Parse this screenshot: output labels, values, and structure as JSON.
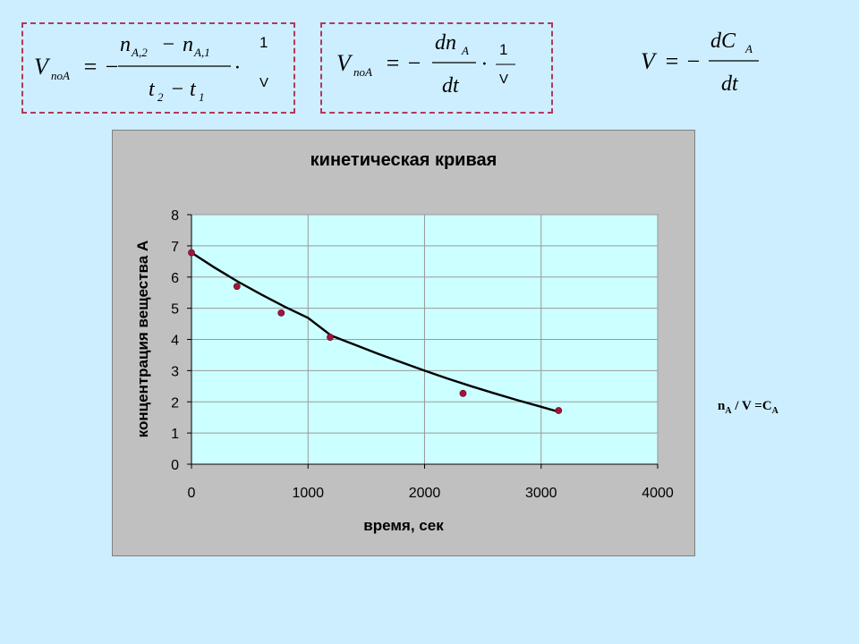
{
  "formulas": {
    "f1": {
      "lhs": "V",
      "lhs_sub": "поA",
      "eq": "= −",
      "num_a": "n",
      "num_a_sub": "A,2",
      "minus": "−",
      "num_b": "n",
      "num_b_sub": "A,1",
      "den_a": "t",
      "den_a_sub": "2",
      "den_b": "t",
      "den_b_sub": "1",
      "dot": "·",
      "one": "1",
      "vol": "V"
    },
    "f2": {
      "lhs": "V",
      "lhs_sub": "поA",
      "eq": "= −",
      "num": "dn",
      "num_sub": "A",
      "den": "dt",
      "dot": "·",
      "one": "1",
      "vol": "V"
    },
    "f3": {
      "lhs": "V",
      "eq": "= −",
      "num": "dC",
      "num_sub": "A",
      "den": "dt"
    }
  },
  "relation": {
    "n": "n",
    "n_sub": "A",
    "mid": " / V =C",
    "c_sub": "A"
  },
  "colors": {
    "page_bg": "#cdeeff",
    "chart_bg": "#c0c0c0",
    "plot_bg": "#ccffff",
    "curve": "#000000",
    "marker": "#a0163a",
    "box_border": "#b03a5b"
  },
  "chart_data": {
    "type": "scatter",
    "title": "кинетическая кривая",
    "xlabel": "время, сек",
    "ylabel": "концентрация вещества А",
    "xlim": [
      0,
      4000
    ],
    "ylim": [
      0,
      8
    ],
    "xticks": [
      0,
      1000,
      2000,
      3000,
      4000
    ],
    "yticks": [
      0,
      1,
      2,
      3,
      4,
      5,
      6,
      7,
      8
    ],
    "grid": true,
    "points": [
      {
        "x": 0,
        "y": 6.78
      },
      {
        "x": 390,
        "y": 5.7
      },
      {
        "x": 770,
        "y": 4.85
      },
      {
        "x": 1190,
        "y": 4.07
      },
      {
        "x": 2330,
        "y": 2.27
      },
      {
        "x": 3150,
        "y": 1.72
      }
    ],
    "trend": [
      {
        "x": 0,
        "y": 6.78
      },
      {
        "x": 200,
        "y": 6.3
      },
      {
        "x": 400,
        "y": 5.85
      },
      {
        "x": 600,
        "y": 5.44
      },
      {
        "x": 800,
        "y": 5.05
      },
      {
        "x": 1000,
        "y": 4.69
      },
      {
        "x": 1200,
        "y": 4.12
      },
      {
        "x": 1400,
        "y": 3.83
      },
      {
        "x": 1600,
        "y": 3.54
      },
      {
        "x": 1800,
        "y": 3.27
      },
      {
        "x": 2000,
        "y": 3.0
      },
      {
        "x": 2200,
        "y": 2.74
      },
      {
        "x": 2400,
        "y": 2.5
      },
      {
        "x": 2600,
        "y": 2.27
      },
      {
        "x": 2800,
        "y": 2.05
      },
      {
        "x": 3000,
        "y": 1.84
      },
      {
        "x": 3150,
        "y": 1.68
      }
    ]
  }
}
